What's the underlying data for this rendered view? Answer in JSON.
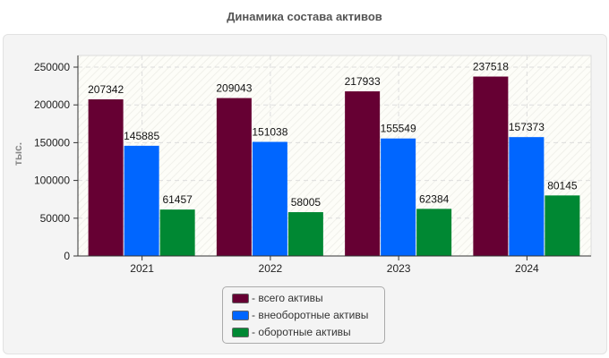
{
  "chart_data": {
    "type": "bar",
    "title": "Динамика состава активов",
    "ylabel": "тыс.",
    "xlabel": "",
    "categories": [
      "2021",
      "2022",
      "2023",
      "2024"
    ],
    "series": [
      {
        "name": "- всего активы",
        "color": "#660033",
        "values": [
          207342,
          209043,
          217933,
          237518
        ]
      },
      {
        "name": "- внеоборотные активы",
        "color": "#0066ff",
        "values": [
          145885,
          151038,
          155549,
          157373
        ]
      },
      {
        "name": "- оборотные активы",
        "color": "#008833",
        "values": [
          61457,
          58005,
          62384,
          80145
        ]
      }
    ],
    "ylim": [
      0,
      250000
    ],
    "yticks": [
      "0",
      "50000",
      "100000",
      "150000",
      "200000",
      "250000"
    ],
    "grid": true,
    "legend_position": "bottom"
  }
}
